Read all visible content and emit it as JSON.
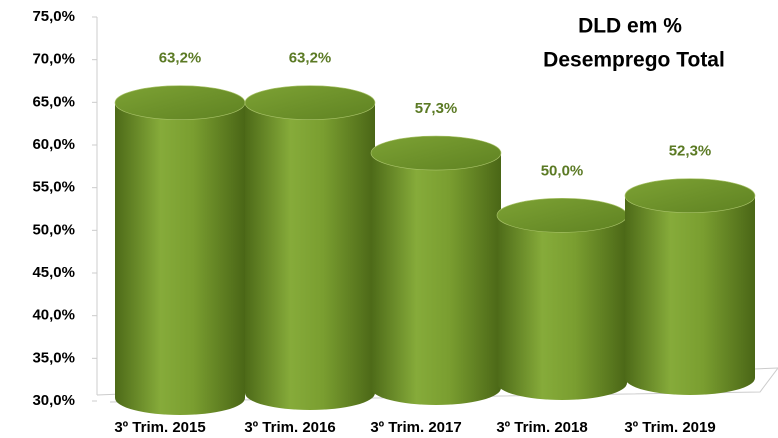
{
  "chart_data": {
    "type": "bar3d",
    "title": "DLD em %",
    "subtitle": "Desemprego Total",
    "categories": [
      "3º Trim. 2015",
      "3º Trim. 2016",
      "3º Trim. 2017",
      "3º Trim. 2018",
      "3º Trim. 2019"
    ],
    "values": [
      63.2,
      63.2,
      57.3,
      50.0,
      52.3
    ],
    "value_labels": [
      "63,2%",
      "63,2%",
      "57,3%",
      "50,0%",
      "52,3%"
    ],
    "color": "#6b8e23",
    "ylim": [
      30,
      75
    ],
    "yticks": [
      {
        "value": 30,
        "label": "30,0%"
      },
      {
        "value": 35,
        "label": "35,0%"
      },
      {
        "value": 40,
        "label": "40,0%"
      },
      {
        "value": 45,
        "label": "45,0%"
      },
      {
        "value": 50,
        "label": "50,0%"
      },
      {
        "value": 55,
        "label": "55,0%"
      },
      {
        "value": 60,
        "label": "60,0%"
      },
      {
        "value": 65,
        "label": "65,0%"
      },
      {
        "value": 70,
        "label": "70,0%"
      },
      {
        "value": 75,
        "label": "75,0%"
      }
    ]
  }
}
